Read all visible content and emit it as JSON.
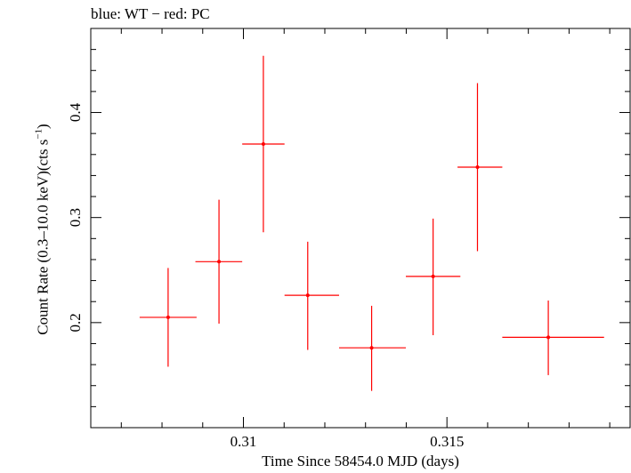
{
  "header": {
    "title": "blue: WT − red: PC"
  },
  "chart_data": {
    "type": "scatter",
    "title": "blue: WT − red: PC",
    "xlabel": "Time Since 58454.0 MJD (days)",
    "ylabel_main": "Count Rate (0.3–10.0 keV)(cts s",
    "ylabel_sup": "−1",
    "ylabel_tail": ")",
    "xlim": [
      0.30625,
      0.3195
    ],
    "ylim": [
      0.1,
      0.48
    ],
    "xticks": [
      {
        "value": 0.31,
        "label": "0.31"
      },
      {
        "value": 0.315,
        "label": "0.315"
      }
    ],
    "yticks": [
      {
        "value": 0.2,
        "label": "0.2"
      },
      {
        "value": 0.3,
        "label": "0.3"
      },
      {
        "value": 0.4,
        "label": "0.4"
      }
    ],
    "grid": false,
    "series": [
      {
        "color": "#ff0000",
        "points": [
          {
            "x": 0.30815,
            "y": 0.205,
            "xlo": 0.30745,
            "xhi": 0.30885,
            "ylo": 0.158,
            "yhi": 0.252
          },
          {
            "x": 0.3094,
            "y": 0.258,
            "xlo": 0.30882,
            "xhi": 0.30997,
            "ylo": 0.199,
            "yhi": 0.317
          },
          {
            "x": 0.31049,
            "y": 0.37,
            "xlo": 0.30997,
            "xhi": 0.31101,
            "ylo": 0.286,
            "yhi": 0.454
          },
          {
            "x": 0.31158,
            "y": 0.226,
            "xlo": 0.31101,
            "xhi": 0.31235,
            "ylo": 0.174,
            "yhi": 0.277
          },
          {
            "x": 0.31315,
            "y": 0.176,
            "xlo": 0.31235,
            "xhi": 0.31399,
            "ylo": 0.135,
            "yhi": 0.216
          },
          {
            "x": 0.31466,
            "y": 0.244,
            "xlo": 0.31399,
            "xhi": 0.31533,
            "ylo": 0.188,
            "yhi": 0.299
          },
          {
            "x": 0.31575,
            "y": 0.348,
            "xlo": 0.31526,
            "xhi": 0.31636,
            "ylo": 0.268,
            "yhi": 0.428
          },
          {
            "x": 0.31749,
            "y": 0.186,
            "xlo": 0.31636,
            "xhi": 0.31886,
            "ylo": 0.15,
            "yhi": 0.221
          }
        ]
      }
    ]
  }
}
